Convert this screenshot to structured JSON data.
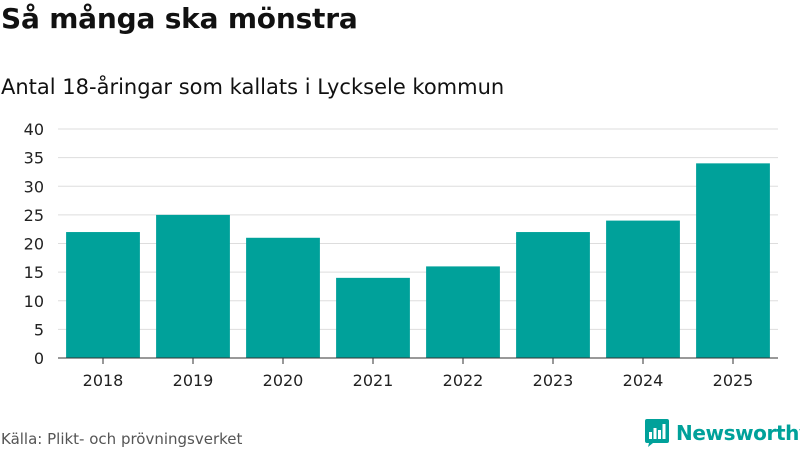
{
  "title": "Så många ska mönstra",
  "subtitle": "Antal 18-åringar som kallats i Lycksele kommun",
  "source": "Källa: Plikt- och prövningsverket",
  "brand": {
    "name": "Newsworthy",
    "icon": "newsworthy-logo-icon",
    "color": "#00a19a"
  },
  "chart_data": {
    "type": "bar",
    "categories": [
      "2018",
      "2019",
      "2020",
      "2021",
      "2022",
      "2023",
      "2024",
      "2025"
    ],
    "values": [
      22,
      25,
      21,
      14,
      16,
      22,
      24,
      34
    ],
    "title": "Så många ska mönstra",
    "subtitle": "Antal 18-åringar som kallats i Lycksele kommun",
    "xlabel": "",
    "ylabel": "",
    "ylim": [
      0,
      40
    ],
    "yticks": [
      0,
      5,
      10,
      15,
      20,
      25,
      30,
      35,
      40
    ],
    "grid": true,
    "legend": "none",
    "bar_color": "#00a19a",
    "grid_color": "#dddddd",
    "axis_color": "#333333"
  }
}
